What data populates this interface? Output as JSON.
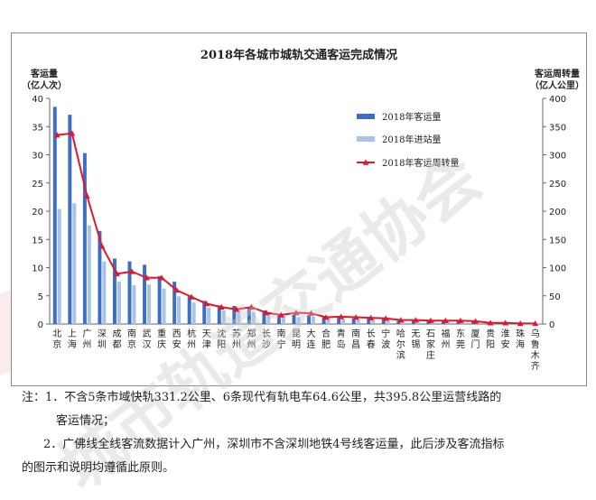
{
  "chart_data": {
    "type": "bar",
    "title": "2018年各城市城轨交通客运完成情况",
    "ylabel_left": "客运量",
    "ylabel_left_unit": "（亿人次）",
    "ylabel_right": "客运周转量",
    "ylabel_right_unit": "（亿人公里）",
    "ylim_left": [
      0,
      40
    ],
    "yticks_left": [
      0,
      5,
      10,
      15,
      20,
      25,
      30,
      35,
      40
    ],
    "ylim_right": [
      0,
      400
    ],
    "yticks_right": [
      0,
      50,
      100,
      150,
      200,
      250,
      300,
      350,
      400
    ],
    "legend_position": "top-right",
    "categories": [
      "北京",
      "上海",
      "广州",
      "深圳",
      "成都",
      "南京",
      "武汉",
      "重庆",
      "西安",
      "杭州",
      "天津",
      "沈阳",
      "苏州",
      "郑州",
      "长沙",
      "南宁",
      "昆明",
      "大连",
      "合肥",
      "青岛",
      "南昌",
      "长春",
      "宁波",
      "哈尔滨",
      "无锡",
      "石家庄",
      "福州",
      "东莞",
      "厦门",
      "贵阳",
      "淮安",
      "珠海",
      "乌鲁木齐"
    ],
    "series": [
      {
        "name": "2018年客运量",
        "type": "bar",
        "axis": "left",
        "color": "#3b6fc4",
        "values": [
          38.5,
          37.1,
          30.3,
          16.5,
          11.6,
          11.1,
          10.5,
          8.5,
          7.5,
          4.9,
          4.1,
          3.3,
          3.2,
          2.8,
          2.4,
          1.8,
          1.6,
          1.6,
          1.3,
          1.1,
          1.0,
          1.0,
          1.0,
          0.6,
          0.6,
          0.6,
          0.5,
          0.5,
          0.5,
          0.2,
          0.2,
          0.1,
          0.1
        ]
      },
      {
        "name": "2018年进站量",
        "type": "bar",
        "axis": "left",
        "color": "#a9c2e9",
        "values": [
          20.4,
          21.4,
          17.5,
          11.1,
          7.5,
          6.9,
          7.0,
          6.3,
          4.9,
          3.8,
          2.9,
          2.4,
          2.4,
          2.1,
          1.9,
          1.4,
          1.2,
          1.3,
          1.1,
          0.9,
          0.8,
          0.8,
          0.8,
          0.5,
          0.5,
          0.5,
          0.4,
          0.4,
          0.4,
          0.2,
          0.2,
          0.1,
          0.1
        ]
      },
      {
        "name": "2018年客运周转量",
        "type": "line",
        "axis": "right",
        "color": "#e3162a",
        "values": [
          335,
          338,
          227,
          138,
          89,
          93,
          82,
          82,
          60,
          48,
          36,
          30,
          26,
          30,
          20,
          16,
          20,
          19,
          12,
          13,
          12,
          11,
          10,
          7,
          7,
          6,
          6,
          6,
          5,
          2,
          2,
          1,
          1
        ]
      }
    ]
  },
  "watermark": {
    "text": "城市轨道交通协会",
    "color": "#d6d6d6",
    "band_color": "#f5d6d6"
  },
  "notes": {
    "line1": "注：1．不含5条市域快轨331.2公里、6条现代有轨电车64.6公里，共395.8公里运营线路的",
    "line2": "客运情况；",
    "line3": "2．广佛线全线客流数据计入广州，深圳市不含深圳地铁4号线客运量，此后涉及客流指标",
    "line4": "的图示和说明均遵循此原则。"
  }
}
